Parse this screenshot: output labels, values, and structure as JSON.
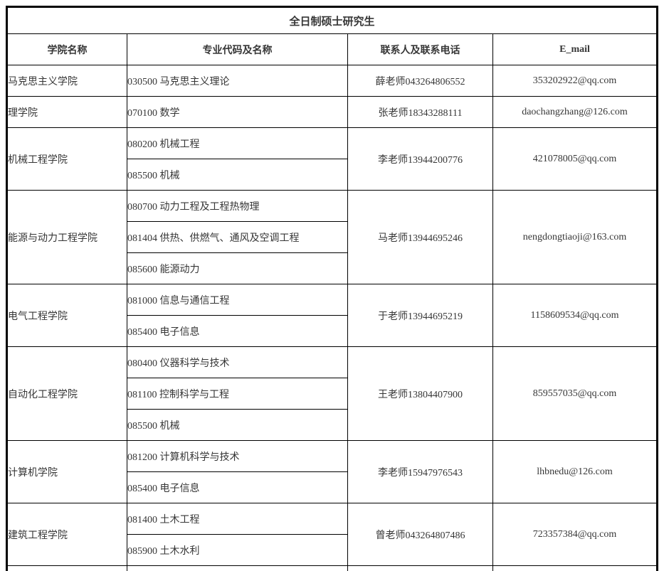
{
  "table": {
    "title": "全日制硕士研究生",
    "columns": [
      "学院名称",
      "专业代码及名称",
      "联系人及联系电话",
      "E_mail"
    ],
    "rows": [
      {
        "college": "马克思主义学院",
        "majors": [
          "030500 马克思主义理论"
        ],
        "contact": "薛老师043264806552",
        "email": "353202922@qq.com"
      },
      {
        "college": "理学院",
        "majors": [
          "070100 数学"
        ],
        "contact": "张老师18343288111",
        "email": "daochangzhang@126.com"
      },
      {
        "college": "机械工程学院",
        "majors": [
          "080200 机械工程",
          "085500 机械"
        ],
        "contact": "李老师13944200776",
        "email": "421078005@qq.com"
      },
      {
        "college": "能源与动力工程学院",
        "majors": [
          "080700 动力工程及工程热物理",
          "081404 供热、供燃气、通风及空调工程",
          "085600 能源动力"
        ],
        "contact": "马老师13944695246",
        "email": "nengdongtiaoji@163.com"
      },
      {
        "college": "电气工程学院",
        "majors": [
          "081000 信息与通信工程",
          "085400 电子信息"
        ],
        "contact": "于老师13944695219",
        "email": "1158609534@qq.com"
      },
      {
        "college": "自动化工程学院",
        "majors": [
          "080400 仪器科学与技术",
          "081100 控制科学与工程",
          "085500 机械"
        ],
        "contact": "王老师13804407900",
        "email": "859557035@qq.com"
      },
      {
        "college": "计算机学院",
        "majors": [
          "081200 计算机科学与技术",
          "085400 电子信息"
        ],
        "contact": "李老师15947976543",
        "email": "lhbnedu@126.com"
      },
      {
        "college": "建筑工程学院",
        "majors": [
          "081400 土木工程",
          "085900 土木水利"
        ],
        "contact": "曾老师043264807486",
        "email": "723357384@qq.com"
      },
      {
        "college": "",
        "majors": [
          ""
        ],
        "contact": "",
        "email": ""
      }
    ],
    "colors": {
      "border": "#000000",
      "text": "#363636",
      "background": "#ffffff"
    }
  }
}
